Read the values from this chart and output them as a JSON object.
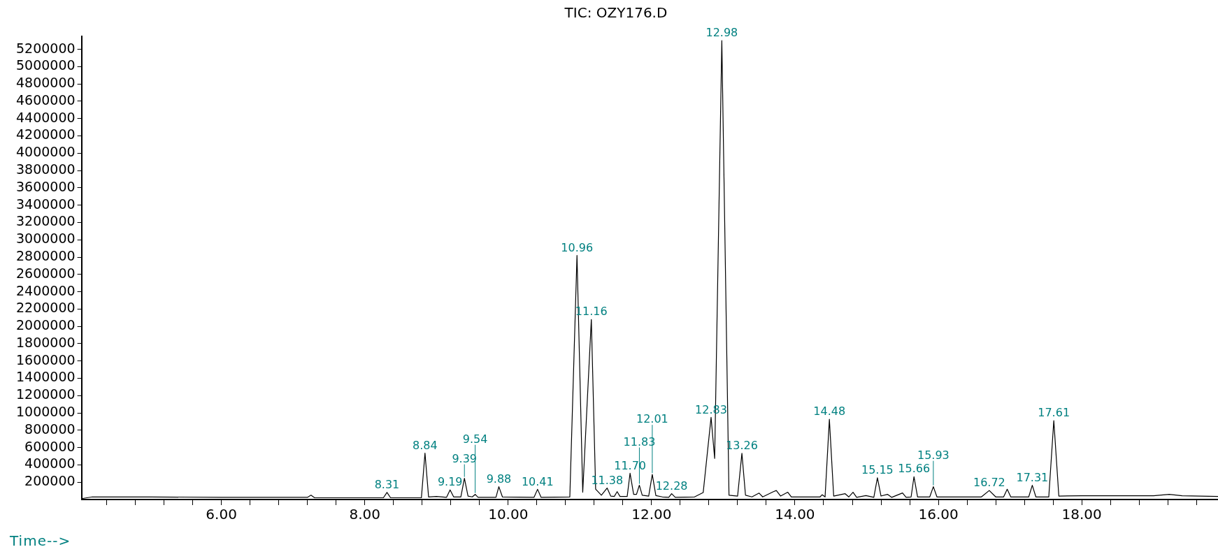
{
  "chart_data": {
    "type": "line",
    "title": "TIC: OZY176.D",
    "xlabel": "Time-->",
    "marker": "none",
    "line_style": "solid",
    "xlim": [
      4.05,
      19.9
    ],
    "xticks": [
      {
        "value": 4.4,
        "label": null
      },
      {
        "value": 4.8,
        "label": null
      },
      {
        "value": 5.2,
        "label": null
      },
      {
        "value": 5.6,
        "label": null
      },
      {
        "value": 6,
        "label": "6.00"
      },
      {
        "value": 6.4,
        "label": null
      },
      {
        "value": 6.8,
        "label": null
      },
      {
        "value": 7.2,
        "label": null
      },
      {
        "value": 7.6,
        "label": null
      },
      {
        "value": 8,
        "label": "8.00"
      },
      {
        "value": 8.4,
        "label": null
      },
      {
        "value": 8.8,
        "label": null
      },
      {
        "value": 9.2,
        "label": null
      },
      {
        "value": 9.6,
        "label": null
      },
      {
        "value": 10,
        "label": "10.00"
      },
      {
        "value": 10.4,
        "label": null
      },
      {
        "value": 10.8,
        "label": null
      },
      {
        "value": 11.2,
        "label": null
      },
      {
        "value": 11.6,
        "label": null
      },
      {
        "value": 12,
        "label": "12.00"
      },
      {
        "value": 12.4,
        "label": null
      },
      {
        "value": 12.8,
        "label": null
      },
      {
        "value": 13.2,
        "label": null
      },
      {
        "value": 13.6,
        "label": null
      },
      {
        "value": 14,
        "label": "14.00"
      },
      {
        "value": 14.4,
        "label": null
      },
      {
        "value": 14.8,
        "label": null
      },
      {
        "value": 15.2,
        "label": null
      },
      {
        "value": 15.6,
        "label": null
      },
      {
        "value": 16,
        "label": "16.00"
      },
      {
        "value": 16.4,
        "label": null
      },
      {
        "value": 16.8,
        "label": null
      },
      {
        "value": 17.2,
        "label": null
      },
      {
        "value": 17.6,
        "label": null
      },
      {
        "value": 18,
        "label": "18.00"
      },
      {
        "value": 18.4,
        "label": null
      },
      {
        "value": 18.8,
        "label": null
      },
      {
        "value": 19.2,
        "label": null
      },
      {
        "value": 19.6,
        "label": null
      }
    ],
    "ylim": [
      0,
      5350000
    ],
    "yticks": [
      200000,
      400000,
      600000,
      800000,
      1000000,
      1200000,
      1400000,
      1600000,
      1800000,
      2000000,
      2200000,
      2400000,
      2600000,
      2800000,
      3000000,
      3200000,
      3400000,
      3600000,
      3800000,
      4000000,
      4200000,
      4400000,
      4600000,
      4800000,
      5000000,
      5200000
    ],
    "series": [
      {
        "color": "#000000",
        "x": [
          4.05,
          4.2,
          5.0,
          6.0,
          7.2,
          7.25,
          7.3,
          8.0,
          8.26,
          8.31,
          8.36,
          8.79,
          8.84,
          8.89,
          9.0,
          9.14,
          9.19,
          9.24,
          9.34,
          9.39,
          9.44,
          9.5,
          9.54,
          9.58,
          9.83,
          9.87,
          9.92,
          10.36,
          10.41,
          10.46,
          10.86,
          10.96,
          11.04,
          11.16,
          11.22,
          11.3,
          11.38,
          11.43,
          11.48,
          11.52,
          11.56,
          11.66,
          11.7,
          11.75,
          11.79,
          11.83,
          11.87,
          11.96,
          12.01,
          12.06,
          12.15,
          12.24,
          12.28,
          12.33,
          12.6,
          12.72,
          12.83,
          12.88,
          12.98,
          13.08,
          13.2,
          13.26,
          13.31,
          13.4,
          13.5,
          13.55,
          13.6,
          13.7,
          13.74,
          13.8,
          13.9,
          13.95,
          14.35,
          14.38,
          14.42,
          14.48,
          14.54,
          14.7,
          14.75,
          14.81,
          14.86,
          14.99,
          15.1,
          15.15,
          15.2,
          15.29,
          15.35,
          15.5,
          15.55,
          15.62,
          15.66,
          15.71,
          15.88,
          15.93,
          15.98,
          16.6,
          16.71,
          16.8,
          16.91,
          16.96,
          17.01,
          17.26,
          17.31,
          17.36,
          17.54,
          17.61,
          17.68,
          18.0,
          19.0,
          19.22,
          19.4,
          19.9
        ],
        "values": [
          10000,
          30000,
          30000,
          25000,
          25000,
          50000,
          20000,
          20000,
          20000,
          82000,
          20000,
          20000,
          536000,
          30000,
          35000,
          25000,
          111000,
          30000,
          30000,
          245000,
          40000,
          30000,
          59000,
          25000,
          25000,
          148000,
          30000,
          25000,
          118000,
          25000,
          30000,
          2820000,
          84000,
          2080000,
          120000,
          50000,
          133000,
          40000,
          35000,
          91000,
          35000,
          35000,
          303000,
          60000,
          60000,
          165000,
          50000,
          40000,
          289000,
          45000,
          30000,
          25000,
          67000,
          25000,
          30000,
          80000,
          949000,
          474000,
          5300000,
          50000,
          40000,
          534000,
          50000,
          30000,
          74000,
          30000,
          50000,
          91000,
          104000,
          40000,
          84000,
          30000,
          30000,
          55000,
          30000,
          927000,
          40000,
          67000,
          30000,
          84000,
          25000,
          45000,
          25000,
          252000,
          40000,
          60000,
          25000,
          76000,
          25000,
          30000,
          264000,
          30000,
          30000,
          148000,
          30000,
          30000,
          104000,
          30000,
          30000,
          119000,
          30000,
          30000,
          165000,
          30000,
          30000,
          912000,
          40000,
          44000,
          44000,
          59000,
          44000,
          35000
        ]
      }
    ],
    "annotations": [
      {
        "text": "8.31",
        "x": 8.31,
        "y": 82000
      },
      {
        "text": "8.84",
        "x": 8.84,
        "y": 536000
      },
      {
        "text": "9.19",
        "x": 9.19,
        "y": 111000
      },
      {
        "text": "9.39",
        "x": 9.39,
        "y": 245000
      },
      {
        "text": "9.54",
        "x": 9.54,
        "y": 59000
      },
      {
        "text": "9.88",
        "x": 9.87,
        "y": 148000
      },
      {
        "text": "10.41",
        "x": 10.41,
        "y": 118000
      },
      {
        "text": "10.96",
        "x": 10.96,
        "y": 2820000
      },
      {
        "text": "11.16",
        "x": 11.16,
        "y": 2080000
      },
      {
        "text": "11.38",
        "x": 11.38,
        "y": 133000
      },
      {
        "text": "11.70",
        "x": 11.7,
        "y": 303000
      },
      {
        "text": "11.83",
        "x": 11.83,
        "y": 165000
      },
      {
        "text": "12.01",
        "x": 12.01,
        "y": 289000
      },
      {
        "text": "12.28",
        "x": 12.28,
        "y": 67000
      },
      {
        "text": "12.83",
        "x": 12.83,
        "y": 949000
      },
      {
        "text": "12.98",
        "x": 12.98,
        "y": 5300000
      },
      {
        "text": "13.26",
        "x": 13.26,
        "y": 534000
      },
      {
        "text": "14.48",
        "x": 14.48,
        "y": 927000
      },
      {
        "text": "15.15",
        "x": 15.15,
        "y": 252000
      },
      {
        "text": "15.66",
        "x": 15.66,
        "y": 264000
      },
      {
        "text": "15.93",
        "x": 15.93,
        "y": 148000
      },
      {
        "text": "16.72",
        "x": 16.71,
        "y": 104000
      },
      {
        "text": "17.31",
        "x": 17.31,
        "y": 165000
      },
      {
        "text": "17.61",
        "x": 17.61,
        "y": 912000
      }
    ]
  }
}
